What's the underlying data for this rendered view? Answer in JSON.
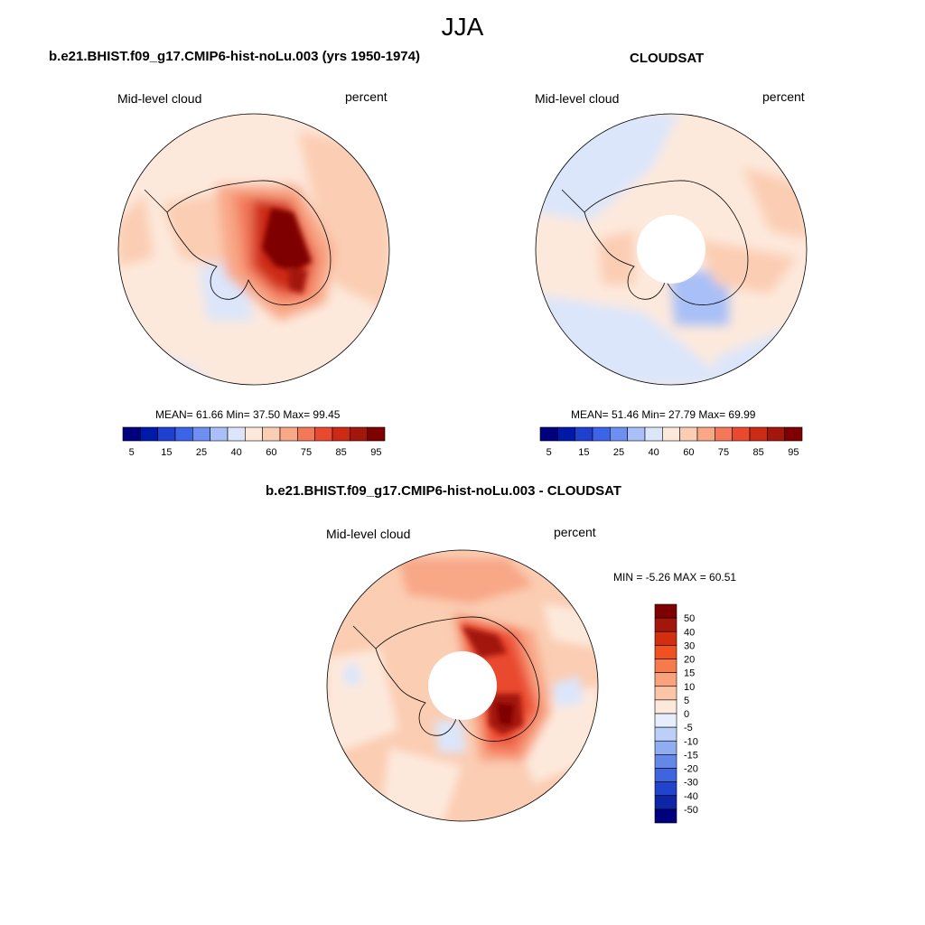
{
  "figure_title": "JJA",
  "panels": [
    {
      "title": "b.e21.BHIST.f09_g17.CMIP6-hist-noLu.003 (yrs 1950-1974)",
      "left_label": "Mid-level cloud",
      "right_label": "percent",
      "stats": "MEAN=  61.66  Min=  37.50  Max=  99.45"
    },
    {
      "title": "CLOUDSAT",
      "left_label": "Mid-level cloud",
      "right_label": "percent",
      "stats": "MEAN=  51.46  Min=  27.79  Max=  69.99"
    },
    {
      "title": "b.e21.BHIST.f09_g17.CMIP6-hist-noLu.003 - CLOUDSAT",
      "left_label": "Mid-level cloud",
      "right_label": "percent",
      "stats": "MIN =  -5.26 MAX =  60.51"
    }
  ],
  "chart_data": [
    {
      "type": "heatmap",
      "projection": "south polar stereographic",
      "variable": "Mid-level cloud",
      "units": "percent",
      "mean": 61.66,
      "min": 37.5,
      "max": 99.45,
      "colorbar": {
        "orientation": "horizontal",
        "labels": [
          "5",
          "15",
          "25",
          "40",
          "60",
          "75",
          "85",
          "95"
        ],
        "colors": [
          "#00007f",
          "#0019a8",
          "#1f3fd1",
          "#3c64e8",
          "#6d8ff2",
          "#a8bff7",
          "#dbe6fb",
          "#fde9dc",
          "#fbcdb3",
          "#f8a787",
          "#f3785a",
          "#e94a2f",
          "#cc2a14",
          "#a3160b",
          "#7f0000"
        ]
      }
    },
    {
      "type": "heatmap",
      "projection": "south polar stereographic",
      "variable": "Mid-level cloud",
      "units": "percent",
      "mean": 51.46,
      "min": 27.79,
      "max": 69.99,
      "colorbar": {
        "orientation": "horizontal",
        "labels": [
          "5",
          "15",
          "25",
          "40",
          "60",
          "75",
          "85",
          "95"
        ],
        "colors": [
          "#00007f",
          "#0019a8",
          "#1f3fd1",
          "#3c64e8",
          "#6d8ff2",
          "#a8bff7",
          "#dbe6fb",
          "#fde9dc",
          "#fbcdb3",
          "#f8a787",
          "#f3785a",
          "#e94a2f",
          "#cc2a14",
          "#a3160b",
          "#7f0000"
        ]
      }
    },
    {
      "type": "heatmap",
      "projection": "south polar stereographic",
      "variable": "Mid-level cloud",
      "units": "percent",
      "min": -5.26,
      "max": 60.51,
      "colorbar": {
        "orientation": "vertical",
        "labels": [
          "50",
          "40",
          "30",
          "20",
          "15",
          "10",
          "5",
          "0",
          "-5",
          "-10",
          "-15",
          "-20",
          "-30",
          "-40",
          "-50"
        ],
        "colors": [
          "#7f0000",
          "#a3160b",
          "#d12f10",
          "#f0511e",
          "#f57a4c",
          "#f9a27c",
          "#fbc6a7",
          "#fde9dc",
          "#e6eefb",
          "#bcd0f7",
          "#8fadf0",
          "#6488e8",
          "#3f64df",
          "#2243cc",
          "#0f25a8",
          "#00007f"
        ]
      }
    }
  ],
  "colors": {
    "ocean_neutral": "#fde9dc",
    "light_orange": "#fbcdb3",
    "light_blue": "#dbe6fb",
    "blue": "#a8bff7",
    "dark_red": "#7f0000"
  }
}
